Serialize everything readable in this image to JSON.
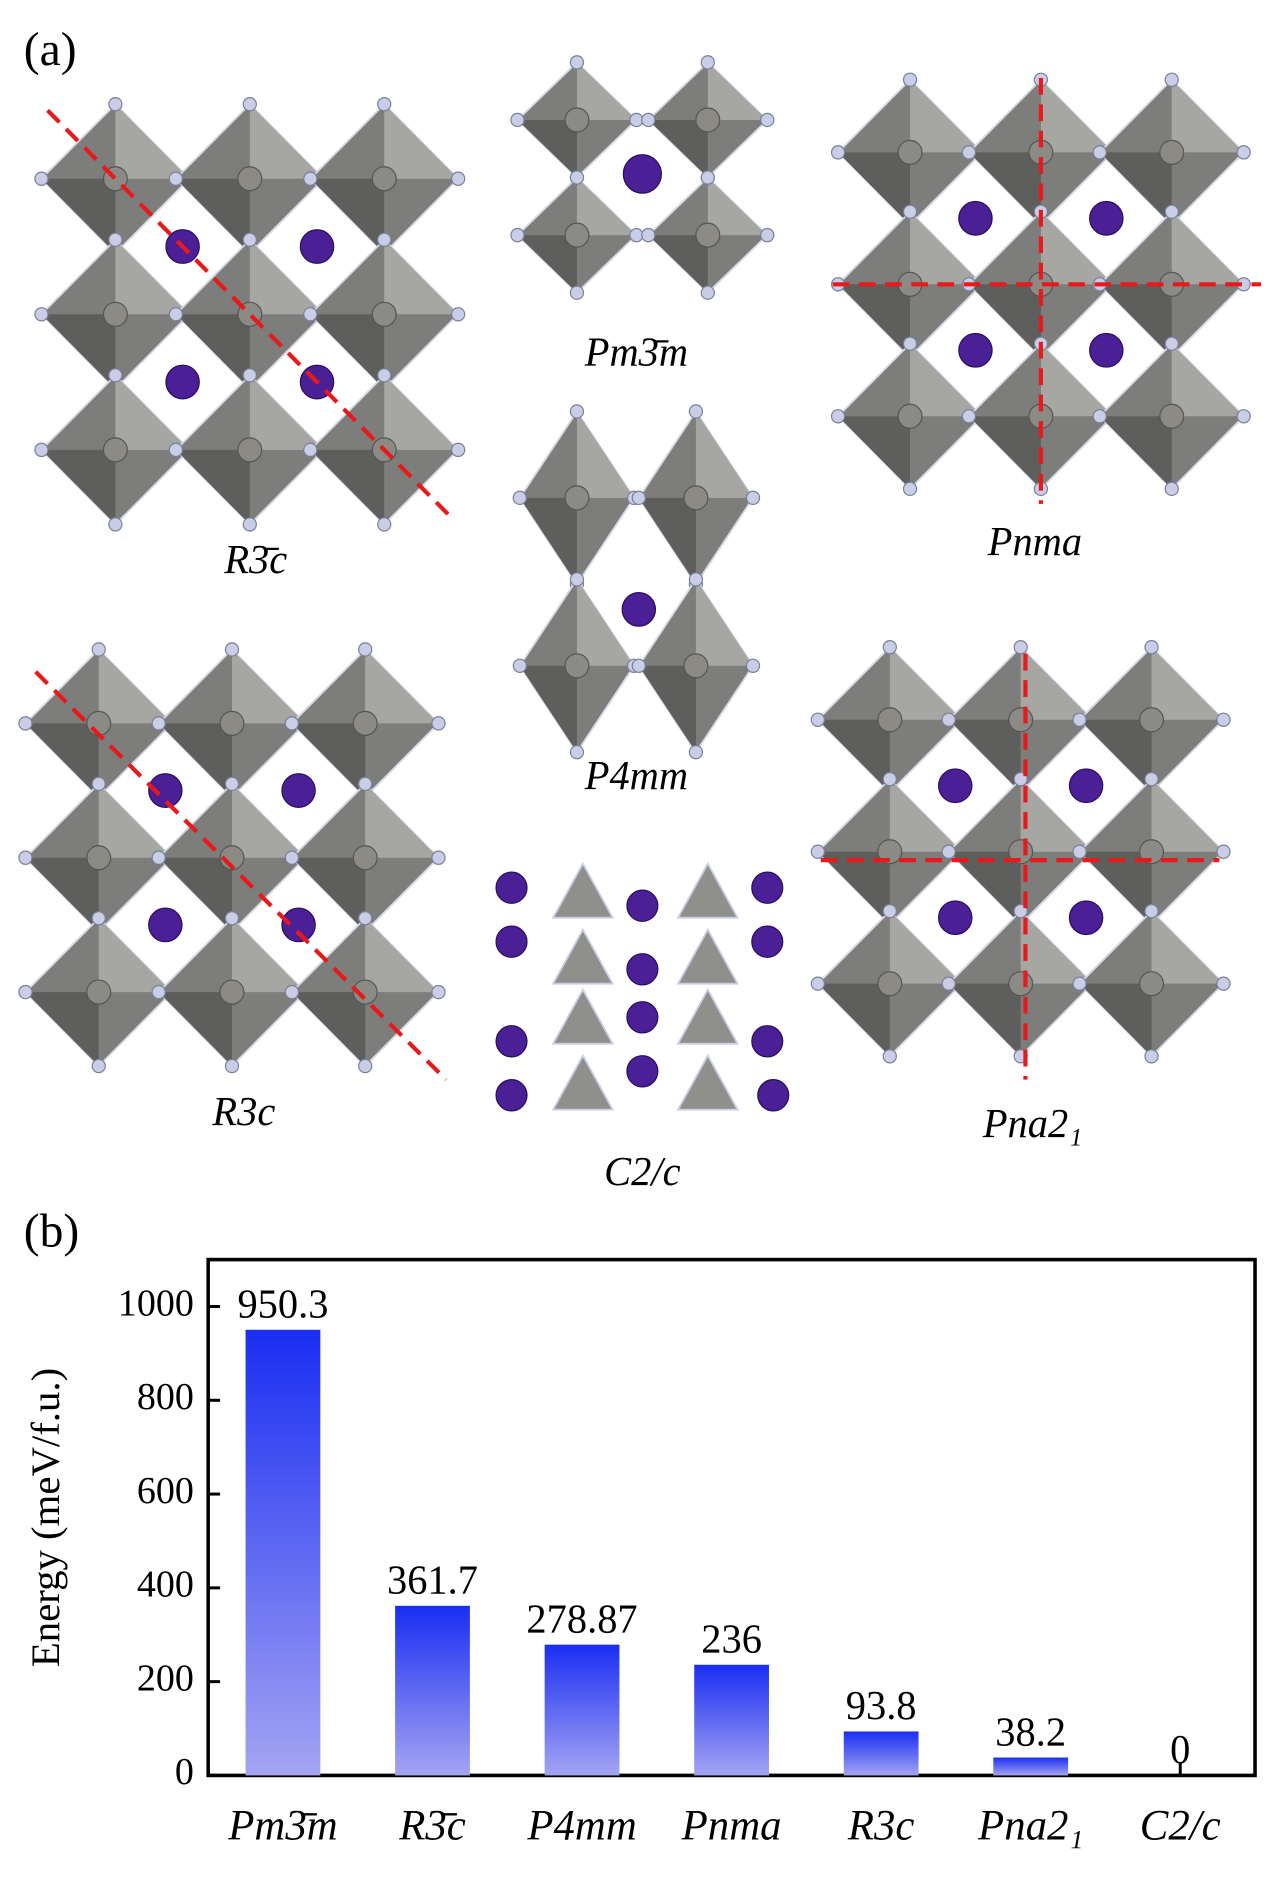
{
  "panel_a": {
    "label": "(a)",
    "structures": [
      "R3̄c",
      "Pm3̄m",
      "Pnma",
      "P4mm",
      "R3c",
      "C2/c",
      "Pna2₁"
    ]
  },
  "chart_data": {
    "type": "bar",
    "panel_label": "(b)",
    "y_label": "Energy (meV/f.u.)",
    "categories": [
      "Pm3̄m",
      "R3̄c",
      "P4mm",
      "Pnma",
      "R3c",
      "Pna2₁",
      "C2/c"
    ],
    "values": [
      950.3,
      361.7,
      278.87,
      236,
      93.8,
      38.2,
      0
    ],
    "gradient": [
      "#1a2ef2",
      "#a4a4f2"
    ],
    "ylim": [
      0,
      1100
    ],
    "yticks": [
      0,
      200,
      400,
      600,
      800,
      1000
    ],
    "grid": false
  }
}
